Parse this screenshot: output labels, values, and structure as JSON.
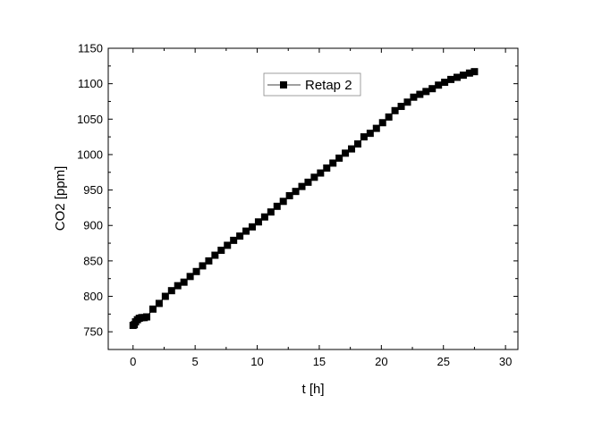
{
  "chart_data": {
    "type": "line",
    "title": "",
    "xlabel": "t [h]",
    "ylabel": "CO2 [ppm]",
    "xlim": [
      -2,
      31
    ],
    "ylim": [
      725,
      1150
    ],
    "x_ticks": [
      0,
      5,
      10,
      15,
      20,
      25,
      30
    ],
    "y_ticks": [
      750,
      800,
      850,
      900,
      950,
      1000,
      1050,
      1100,
      1150
    ],
    "grid": false,
    "legend_position": "top-center",
    "marker": "square",
    "series_color": "#000000",
    "series": [
      {
        "name": "Retap 2",
        "x": [
          0,
          0.1,
          0.2,
          0.35,
          0.5,
          0.7,
          0.9,
          1.1,
          1.6,
          2.1,
          2.6,
          3.1,
          3.6,
          4.1,
          4.6,
          5.1,
          5.6,
          6.1,
          6.6,
          7.1,
          7.6,
          8.1,
          8.6,
          9.1,
          9.6,
          10.1,
          10.6,
          11.1,
          11.6,
          12.1,
          12.6,
          13.1,
          13.6,
          14.1,
          14.6,
          15.1,
          15.6,
          16.1,
          16.6,
          17.1,
          17.6,
          18.1,
          18.6,
          19.1,
          19.6,
          20.1,
          20.6,
          21.1,
          21.6,
          22.1,
          22.6,
          23.1,
          23.6,
          24.1,
          24.6,
          25.1,
          25.6,
          26.1,
          26.6,
          27.1,
          27.5
        ],
        "y": [
          759,
          760,
          764,
          767,
          769,
          770,
          770,
          771,
          782,
          790,
          800,
          808,
          815,
          820,
          828,
          835,
          843,
          850,
          858,
          865,
          872,
          879,
          885,
          892,
          898,
          905,
          912,
          919,
          927,
          934,
          942,
          948,
          955,
          961,
          968,
          974,
          981,
          988,
          995,
          1002,
          1008,
          1015,
          1025,
          1030,
          1037,
          1045,
          1053,
          1062,
          1068,
          1074,
          1081,
          1085,
          1089,
          1093,
          1098,
          1102,
          1106,
          1109,
          1112,
          1115,
          1117
        ]
      }
    ]
  }
}
